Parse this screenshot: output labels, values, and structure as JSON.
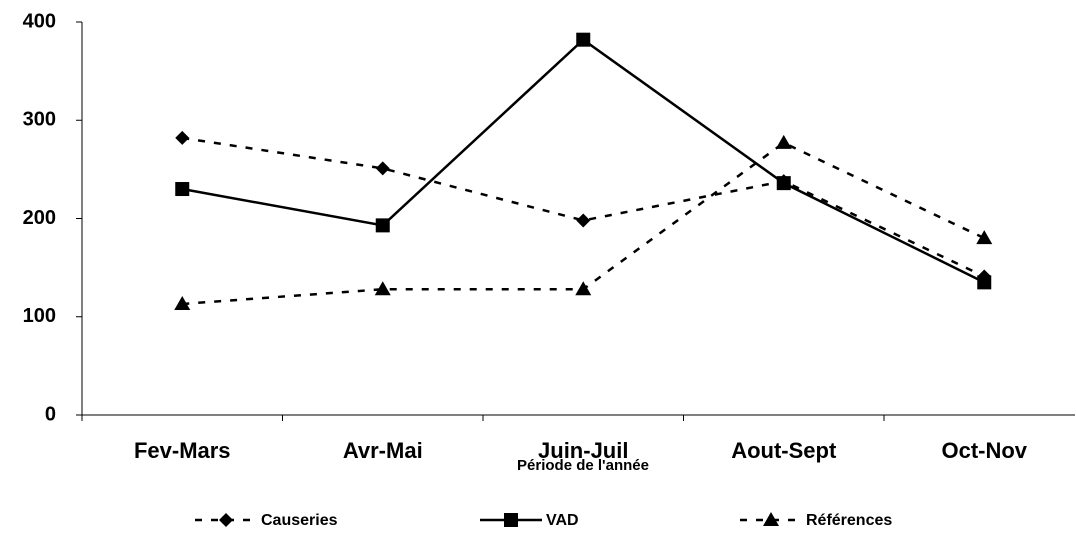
{
  "chart_data": {
    "type": "line",
    "x_label": "Période de l'année",
    "categories": [
      "Fev-Mars",
      "Avr-Mai",
      "Juin-Juil",
      "Aout-Sept",
      "Oct-Nov"
    ],
    "series": [
      {
        "name": "Causeries",
        "color": "#000000",
        "line_style": "dashed",
        "marker": "diamond",
        "values": [
          282,
          251,
          198,
          238,
          141
        ]
      },
      {
        "name": "VAD",
        "color": "#000000",
        "line_style": "solid",
        "marker": "square",
        "values": [
          230,
          193,
          382,
          236,
          135
        ]
      },
      {
        "name": "Références",
        "color": "#000000",
        "line_style": "dashed",
        "marker": "triangle",
        "values": [
          113,
          128,
          128,
          277,
          180
        ]
      }
    ],
    "ylim": [
      0,
      400
    ],
    "yticks": [
      0,
      100,
      200,
      300,
      400
    ],
    "grid": false,
    "legend": "bottom"
  }
}
